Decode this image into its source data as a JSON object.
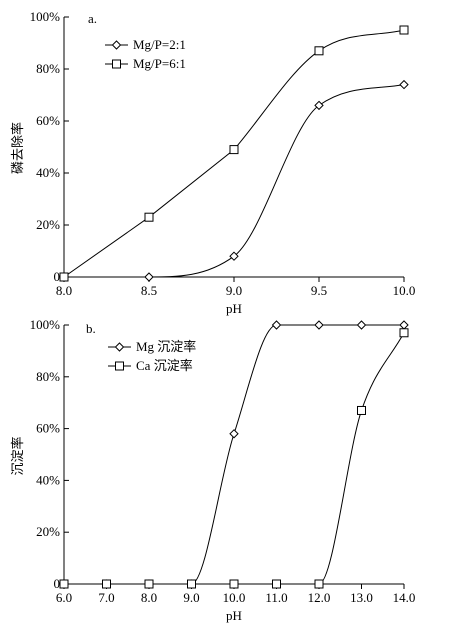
{
  "chart_data": [
    {
      "type": "line",
      "panel_label": "a.",
      "title": "",
      "xlabel": "pH",
      "ylabel": "磷去除率",
      "xlim": [
        8.0,
        10.0
      ],
      "ylim": [
        0,
        100
      ],
      "xticks": [
        "8.0",
        "8.5",
        "9.0",
        "9.5",
        "10.0"
      ],
      "yticks": [
        "0",
        "20%",
        "40%",
        "60%",
        "80%",
        "100%"
      ],
      "legend_position": "top-left",
      "grid": false,
      "series": [
        {
          "name": "Mg/P=2:1",
          "marker": "diamond",
          "x": [
            8.5,
            9.0,
            9.5,
            10.0
          ],
          "y": [
            0,
            8,
            66,
            74
          ]
        },
        {
          "name": "Mg/P=6:1",
          "marker": "square",
          "x": [
            8.0,
            8.5,
            9.0,
            9.5,
            10.0
          ],
          "y": [
            0,
            23,
            49,
            87,
            95
          ]
        }
      ]
    },
    {
      "type": "line",
      "panel_label": "b.",
      "title": "",
      "xlabel": "pH",
      "ylabel": "沉淀率",
      "xlim": [
        6.0,
        14.0
      ],
      "ylim": [
        0,
        100
      ],
      "xticks": [
        "6.0",
        "7.0",
        "8.0",
        "9.0",
        "10.0",
        "11.0",
        "12.0",
        "13.0",
        "14.0"
      ],
      "yticks": [
        "0",
        "20%",
        "40%",
        "60%",
        "80%",
        "100%"
      ],
      "legend_position": "top-left",
      "grid": false,
      "series": [
        {
          "name": "Mg 沉淀率",
          "marker": "diamond",
          "x": [
            6,
            7,
            8,
            9,
            10,
            11,
            12,
            13,
            14
          ],
          "y": [
            0,
            0,
            0,
            0,
            58,
            100,
            100,
            100,
            100
          ]
        },
        {
          "name": "Ca 沉淀率",
          "marker": "square",
          "x": [
            6,
            7,
            8,
            9,
            10,
            11,
            12,
            13,
            14
          ],
          "y": [
            0,
            0,
            0,
            0,
            0,
            0,
            0,
            67,
            97
          ]
        }
      ]
    }
  ]
}
